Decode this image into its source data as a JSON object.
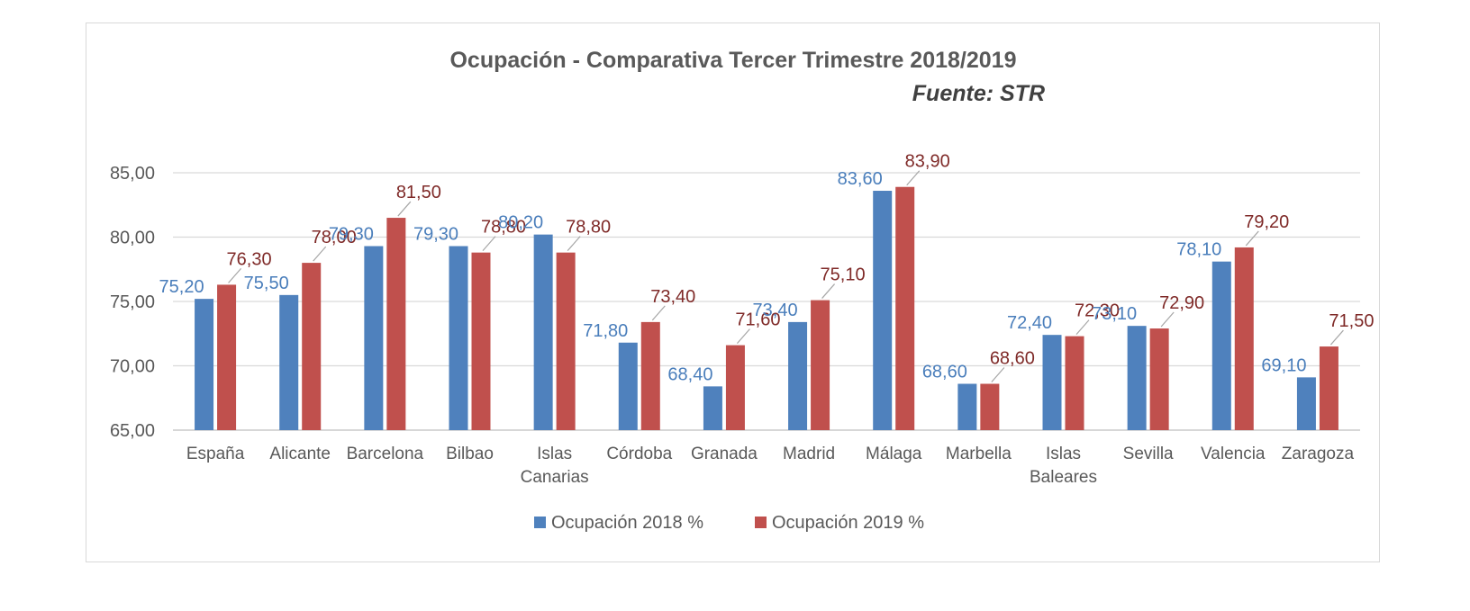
{
  "chart_data": {
    "type": "bar",
    "title": "Ocupación  - Comparativa Tercer Trimestre 2018/2019",
    "subtitle": "Fuente: STR",
    "categories": [
      [
        "España"
      ],
      [
        "Alicante"
      ],
      [
        "Barcelona"
      ],
      [
        "Bilbao"
      ],
      [
        "Islas",
        "Canarias"
      ],
      [
        "Córdoba"
      ],
      [
        "Granada"
      ],
      [
        "Madrid"
      ],
      [
        "Málaga"
      ],
      [
        "Marbella"
      ],
      [
        "Islas",
        "Baleares"
      ],
      [
        "Sevilla"
      ],
      [
        "Valencia"
      ],
      [
        "Zaragoza"
      ]
    ],
    "series": [
      {
        "name": "Ocupación 2018 %",
        "color": "#4f81bd",
        "label_color": "#4a7ebb",
        "values": [
          75.2,
          75.5,
          79.3,
          79.3,
          80.2,
          71.8,
          68.4,
          73.4,
          83.6,
          68.6,
          72.4,
          73.1,
          78.1,
          69.1
        ],
        "labels": [
          "75,20",
          "75,50",
          "79,30",
          "79,30",
          "80,20",
          "71,80",
          "68,40",
          "73,40",
          "83,60",
          "68,60",
          "72,40",
          "73,10",
          "78,10",
          "69,10"
        ]
      },
      {
        "name": "Ocupación 2019 %",
        "color": "#c0504d",
        "label_color": "#7f2a28",
        "values": [
          76.3,
          78.0,
          81.5,
          78.8,
          78.8,
          73.4,
          71.6,
          75.1,
          83.9,
          68.6,
          72.3,
          72.9,
          79.2,
          71.5
        ],
        "labels": [
          "76,30",
          "78,00",
          "81,50",
          "78,80",
          "78,80",
          "73,40",
          "71,60",
          "75,10",
          "83,90",
          "68,60",
          "72,30",
          "72,90",
          "79,20",
          "71,50"
        ]
      }
    ],
    "ylim": [
      65,
      85
    ],
    "yticks": [
      "65,00",
      "70,00",
      "75,00",
      "80,00",
      "85,00"
    ],
    "grid": true,
    "legend_position": "bottom"
  }
}
